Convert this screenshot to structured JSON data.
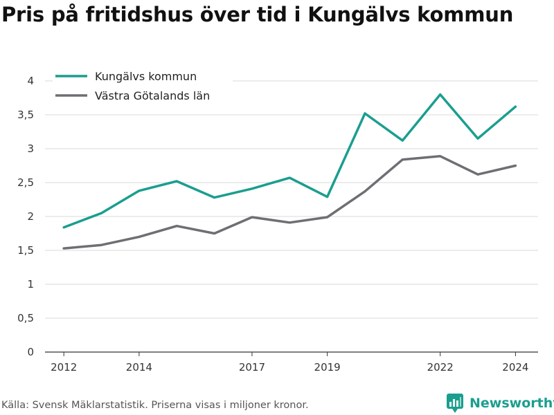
{
  "chart_data": {
    "type": "line",
    "title": "Pris på fritidshus över tid i Kungälvs kommun",
    "x": [
      2012,
      2013,
      2014,
      2015,
      2016,
      2017,
      2018,
      2019,
      2020,
      2021,
      2022,
      2023,
      2024
    ],
    "x_tick_labels": [
      "2012",
      "2014",
      "2017",
      "2019",
      "2022",
      "2024"
    ],
    "xlim": [
      2011.5,
      2024.6
    ],
    "y_ticks": [
      0,
      0.5,
      1,
      1.5,
      2,
      2.5,
      3,
      3.5,
      4
    ],
    "y_tick_labels": [
      "0",
      "0,5",
      "1",
      "1,5",
      "2",
      "2,5",
      "3",
      "3,5",
      "4"
    ],
    "ylim": [
      0,
      4
    ],
    "grid": true,
    "legend_position": "top-left",
    "series": [
      {
        "name": "Kungälvs kommun",
        "color": "#1a9e8f",
        "values": [
          1.84,
          2.05,
          2.38,
          2.52,
          2.28,
          2.41,
          2.57,
          2.29,
          3.52,
          3.12,
          3.8,
          3.15,
          3.62
        ]
      },
      {
        "name": "Västra Götalands län",
        "color": "#6e6e73",
        "values": [
          1.53,
          1.58,
          1.7,
          1.86,
          1.75,
          1.99,
          1.91,
          1.99,
          2.37,
          2.84,
          2.89,
          2.62,
          2.75
        ]
      }
    ]
  },
  "footer": {
    "source": "Källa: Svensk Mäklarstatistik. Priserna visas i miljoner kronor.",
    "brand": "Newsworthy",
    "brand_icon": "newsworthy-logo-icon",
    "brand_color": "#1a9e8f"
  }
}
